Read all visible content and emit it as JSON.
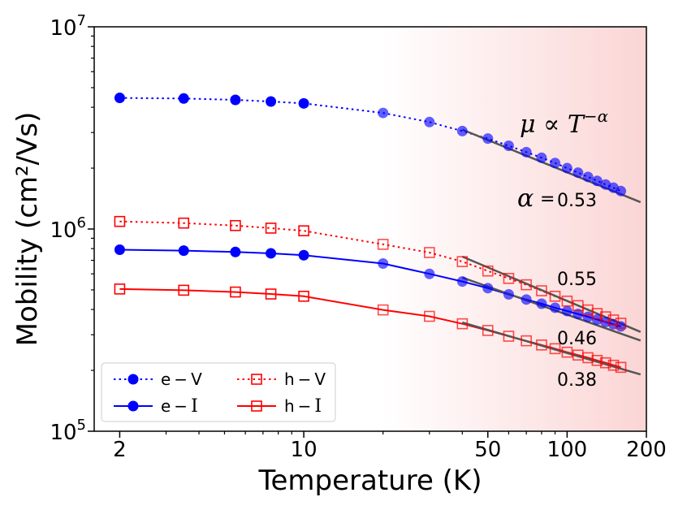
{
  "chart_data": {
    "type": "line",
    "title": "",
    "xlabel": "Temperature (K)",
    "ylabel": "Mobility (cm²/Vs)",
    "xscale": "log",
    "yscale": "log",
    "xlim": [
      1.6,
      200
    ],
    "ylim": [
      100000,
      10000000
    ],
    "x_ticks": [
      {
        "value": 2,
        "label": "2"
      },
      {
        "value": 10,
        "label": "10"
      },
      {
        "value": 50,
        "label": "50"
      },
      {
        "value": 100,
        "label": "100"
      },
      {
        "value": 200,
        "label": "200"
      }
    ],
    "y_ticks": [
      {
        "value": 100000,
        "base": "10",
        "exp": "5"
      },
      {
        "value": 1000000,
        "base": "10",
        "exp": "6"
      },
      {
        "value": 10000000,
        "base": "10",
        "exp": "7"
      }
    ],
    "shaded_region": {
      "from_x": 20,
      "to_x": 200,
      "color": "#fbd5d5"
    },
    "series": [
      {
        "name": "e−V",
        "label_prefix": "e",
        "label_suffix": "V",
        "color": "#0000ff",
        "marker": "circle-filled",
        "linestyle": "dotted",
        "x": [
          2,
          3.5,
          5.5,
          7.5,
          10,
          20,
          30,
          40,
          50,
          60,
          70,
          80,
          90,
          100,
          110,
          120,
          130,
          140,
          150,
          160
        ],
        "y": [
          4450000,
          4420000,
          4350000,
          4270000,
          4180000,
          3750000,
          3380000,
          3050000,
          2800000,
          2580000,
          2400000,
          2250000,
          2120000,
          2000000,
          1900000,
          1810000,
          1730000,
          1660000,
          1600000,
          1540000
        ]
      },
      {
        "name": "e−I",
        "label_prefix": "e",
        "label_suffix": "I",
        "color": "#0000ff",
        "marker": "circle-filled",
        "linestyle": "solid",
        "x": [
          2,
          3.5,
          5.5,
          7.5,
          10,
          20,
          30,
          40,
          50,
          60,
          70,
          80,
          90,
          100,
          110,
          120,
          130,
          140,
          150,
          160
        ],
        "y": [
          790000,
          782000,
          770000,
          758000,
          742000,
          675000,
          600000,
          550000,
          510000,
          475000,
          448000,
          427000,
          408000,
          393000,
          380000,
          368000,
          357000,
          347000,
          338000,
          330000
        ]
      },
      {
        "name": "h−V",
        "label_prefix": "h",
        "label_suffix": "V",
        "color": "#ff0000",
        "marker": "square-open",
        "linestyle": "dotted",
        "x": [
          2,
          3.5,
          5.5,
          7.5,
          10,
          20,
          30,
          40,
          50,
          60,
          70,
          80,
          90,
          100,
          110,
          120,
          130,
          140,
          150,
          160
        ],
        "y": [
          1090000,
          1070000,
          1040000,
          1010000,
          980000,
          840000,
          765000,
          690000,
          620000,
          570000,
          530000,
          495000,
          465000,
          440000,
          418000,
          398000,
          382000,
          368000,
          355000,
          342000
        ]
      },
      {
        "name": "h−I",
        "label_prefix": "h",
        "label_suffix": "I",
        "color": "#ff0000",
        "marker": "square-open",
        "linestyle": "solid",
        "x": [
          2,
          3.5,
          5.5,
          7.5,
          10,
          20,
          30,
          40,
          50,
          60,
          70,
          80,
          90,
          100,
          110,
          120,
          130,
          140,
          150,
          160
        ],
        "y": [
          505000,
          498000,
          488000,
          477000,
          465000,
          398000,
          370000,
          340000,
          315000,
          295000,
          280000,
          267000,
          256000,
          246000,
          238000,
          231000,
          224000,
          218000,
          212000,
          207000
        ]
      }
    ],
    "fits": [
      {
        "series": "e−V",
        "alpha": 0.53,
        "label": "0.53",
        "x_range": [
          40,
          190
        ],
        "anchor": [
          40,
          3100000
        ],
        "color": "#555555"
      },
      {
        "series": "h−V",
        "alpha": 0.55,
        "label": "0.55",
        "x_range": [
          40,
          190
        ],
        "anchor": [
          40,
          730000
        ],
        "color": "#555555"
      },
      {
        "series": "e−I",
        "alpha": 0.46,
        "label": "0.46",
        "x_range": [
          40,
          190
        ],
        "anchor": [
          40,
          575000
        ],
        "color": "#555555"
      },
      {
        "series": "h−I",
        "alpha": 0.38,
        "label": "0.38",
        "x_range": [
          40,
          190
        ],
        "anchor": [
          40,
          345000
        ],
        "color": "#555555"
      }
    ],
    "annotations": {
      "formula_mu": "μ",
      "formula_prop": "∝",
      "formula_T": "T",
      "formula_exp": "−α",
      "alpha_symbol": "α",
      "alpha_equals": "="
    },
    "legend": {
      "placement": "lower-left",
      "columns": 2
    }
  }
}
